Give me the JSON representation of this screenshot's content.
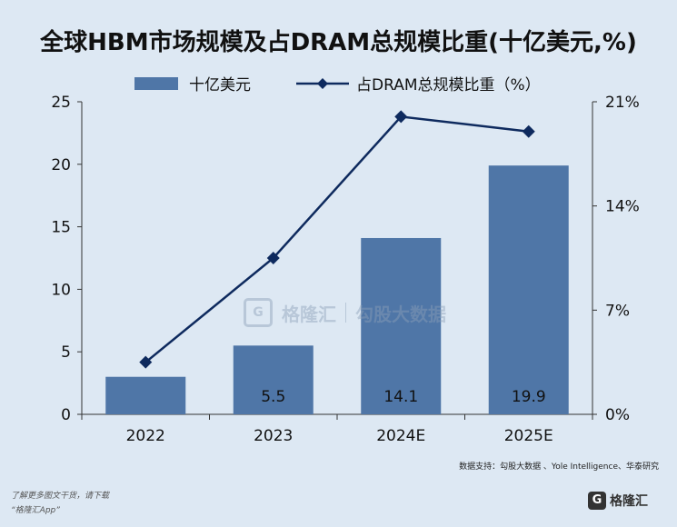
{
  "title": "全球HBM市场规模及占DRAM总规模比重(十亿美元,%)",
  "legend": {
    "bar_label": "十亿美元",
    "line_label": "占DRAM总规模比重（%）"
  },
  "source": "数据支持：勾股大数据 、Yole Intelligence、华泰研究",
  "footer": {
    "line1": "了解更多图文干货，请下载",
    "line2": "“格隆汇App”"
  },
  "watermark": {
    "brand": "格隆汇",
    "partner": "勾股大数据",
    "logo_glyph": "G"
  },
  "logo": {
    "glyph": "G",
    "text": "格隆汇"
  },
  "colors": {
    "bar": "#4f76a7",
    "line": "#0e2a5e",
    "background": "#dde8f3"
  },
  "chart_data": {
    "type": "bar",
    "categories": [
      "2022",
      "2023",
      "2024E",
      "2025E"
    ],
    "series": [
      {
        "name": "十亿美元",
        "type": "bar",
        "axis": "left",
        "values": [
          3.0,
          5.5,
          14.1,
          19.9
        ],
        "data_labels": [
          "",
          "5.5",
          "14.1",
          "19.9"
        ]
      },
      {
        "name": "占DRAM总规模比重（%）",
        "type": "line",
        "axis": "right",
        "values": [
          3.5,
          10.5,
          20.0,
          19.0
        ]
      }
    ],
    "y_left": {
      "lim": [
        0,
        25
      ],
      "ticks": [
        "0",
        "5",
        "10",
        "15",
        "20",
        "25"
      ]
    },
    "y_right": {
      "lim": [
        0,
        21
      ],
      "ticks": [
        "0%",
        "7%",
        "14%",
        "21%"
      ]
    },
    "grid": false,
    "legend_position": "top"
  }
}
